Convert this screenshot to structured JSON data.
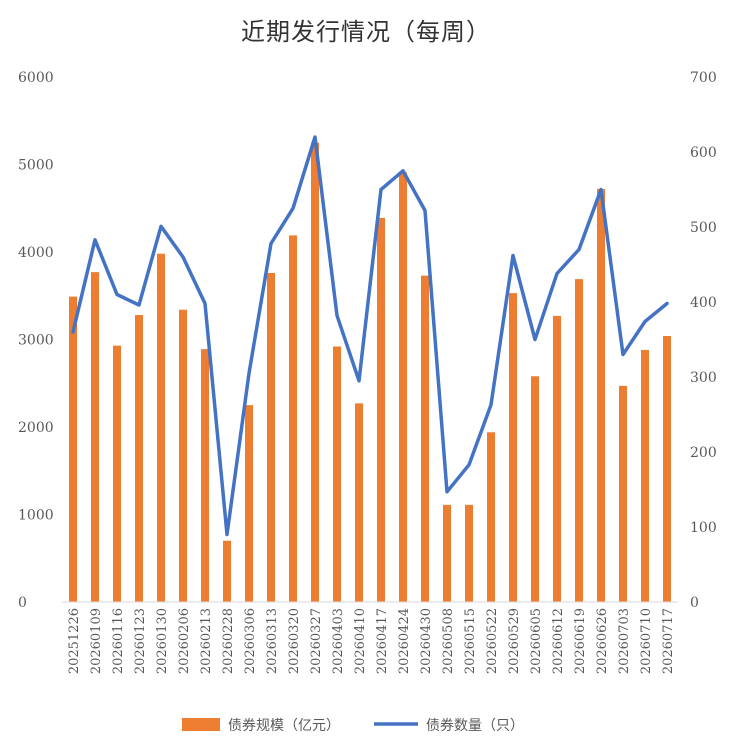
{
  "chart_data": {
    "type": "bar+line",
    "title": "近期发行情况（每周）",
    "categories": [
      "20251226",
      "20260109",
      "20260116",
      "20260123",
      "20260130",
      "20260206",
      "20260213",
      "20260228",
      "20260306",
      "20260313",
      "20260320",
      "20260327",
      "20260403",
      "20260410",
      "20260417",
      "20260424",
      "20260430",
      "20260508",
      "20260515",
      "20260522",
      "20260529",
      "20260605",
      "20260612",
      "20260619",
      "20260626",
      "20260703",
      "20260710",
      "20260717"
    ],
    "series": [
      {
        "name": "债券规模（亿元）",
        "type": "bar",
        "axis": "left",
        "color": "#ED7D31",
        "values": [
          3490,
          3770,
          2930,
          3280,
          3980,
          3340,
          2890,
          700,
          2250,
          3760,
          4190,
          5250,
          2920,
          2270,
          4390,
          4910,
          3730,
          1110,
          1110,
          1940,
          3530,
          2580,
          3270,
          3690,
          4720,
          2470,
          2880,
          3040
        ]
      },
      {
        "name": "债券数量（只）",
        "type": "line",
        "axis": "right",
        "color": "#4472C4",
        "values": [
          360,
          483,
          410,
          396,
          501,
          460,
          398,
          90,
          305,
          478,
          525,
          620,
          382,
          295,
          550,
          575,
          522,
          147,
          183,
          263,
          462,
          350,
          438,
          470,
          550,
          330,
          374,
          398
        ]
      }
    ],
    "y_left": {
      "min": 0,
      "max": 6000,
      "ticks": [
        "0",
        "1000",
        "2000",
        "3000",
        "4000",
        "5000",
        "6000"
      ]
    },
    "y_right": {
      "min": 0,
      "max": 700,
      "ticks": [
        "0",
        "100",
        "200",
        "300",
        "400",
        "500",
        "600",
        "700"
      ]
    },
    "grid": false,
    "legend_position": "bottom"
  }
}
